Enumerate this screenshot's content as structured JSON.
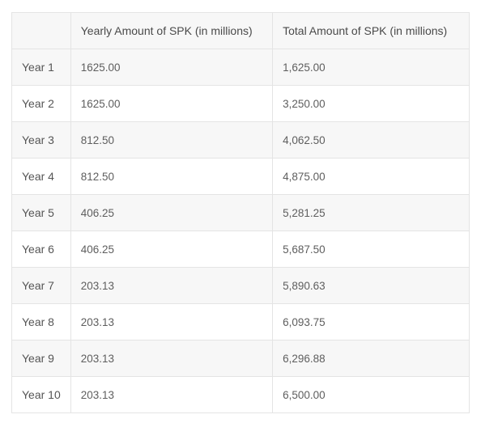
{
  "table": {
    "headers": [
      "",
      "Yearly Amount of SPK (in millions)",
      "Total Amount of SPK (in millions)"
    ],
    "rows": [
      {
        "year": "Year 1",
        "yearly": "1625.00",
        "total": "1,625.00"
      },
      {
        "year": "Year 2",
        "yearly": "1625.00",
        "total": "3,250.00"
      },
      {
        "year": "Year 3",
        "yearly": "812.50",
        "total": "4,062.50"
      },
      {
        "year": "Year 4",
        "yearly": "812.50",
        "total": "4,875.00"
      },
      {
        "year": "Year 5",
        "yearly": "406.25",
        "total": "5,281.25"
      },
      {
        "year": "Year 6",
        "yearly": "406.25",
        "total": "5,687.50"
      },
      {
        "year": "Year 7",
        "yearly": "203.13",
        "total": "5,890.63"
      },
      {
        "year": "Year 8",
        "yearly": "203.13",
        "total": "6,093.75"
      },
      {
        "year": "Year 9",
        "yearly": "203.13",
        "total": "6,296.88"
      },
      {
        "year": "Year 10",
        "yearly": "203.13",
        "total": "6,500.00"
      }
    ]
  },
  "colors": {
    "stripe": "#f7f7f7",
    "border": "#e4e4e4",
    "text": "#555555"
  }
}
